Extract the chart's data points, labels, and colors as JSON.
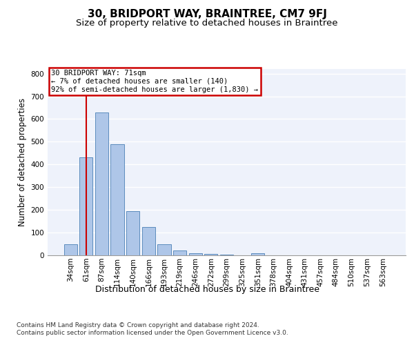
{
  "title": "30, BRIDPORT WAY, BRAINTREE, CM7 9FJ",
  "subtitle": "Size of property relative to detached houses in Braintree",
  "xlabel": "Distribution of detached houses by size in Braintree",
  "ylabel": "Number of detached properties",
  "categories": [
    "34sqm",
    "61sqm",
    "87sqm",
    "114sqm",
    "140sqm",
    "166sqm",
    "193sqm",
    "219sqm",
    "246sqm",
    "272sqm",
    "299sqm",
    "325sqm",
    "351sqm",
    "378sqm",
    "404sqm",
    "431sqm",
    "457sqm",
    "484sqm",
    "510sqm",
    "537sqm",
    "563sqm"
  ],
  "bar_heights": [
    50,
    430,
    630,
    490,
    193,
    125,
    50,
    22,
    10,
    5,
    2,
    1,
    8,
    0,
    0,
    0,
    0,
    0,
    0,
    0,
    0
  ],
  "bar_color": "#aec6e8",
  "bar_edge_color": "#4a7fb5",
  "vline_x": 1,
  "vline_color": "#cc0000",
  "annotation_text": "30 BRIDPORT WAY: 71sqm\n← 7% of detached houses are smaller (140)\n92% of semi-detached houses are larger (1,830) →",
  "annotation_box_color": "#ffffff",
  "annotation_box_edge": "#cc0000",
  "ylim": [
    0,
    820
  ],
  "yticks": [
    0,
    100,
    200,
    300,
    400,
    500,
    600,
    700,
    800
  ],
  "background_color": "#eef2fb",
  "grid_color": "#ffffff",
  "footer": "Contains HM Land Registry data © Crown copyright and database right 2024.\nContains public sector information licensed under the Open Government Licence v3.0.",
  "title_fontsize": 11,
  "subtitle_fontsize": 9.5,
  "xlabel_fontsize": 9,
  "ylabel_fontsize": 8.5,
  "tick_fontsize": 7.5,
  "footer_fontsize": 6.5
}
